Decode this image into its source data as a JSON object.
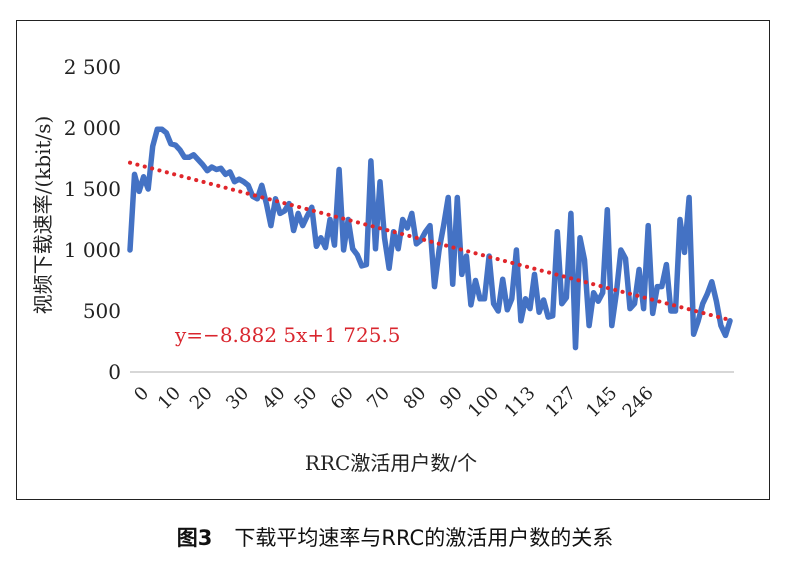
{
  "chart_data": {
    "type": "line",
    "xlabel": "RRC激活用户数/个",
    "ylabel": "视频下载速率/(kbit/s)",
    "ylim": [
      0,
      2500
    ],
    "y_ticks": [
      0,
      500,
      1000,
      1500,
      2000,
      2500
    ],
    "y_tick_labels": [
      "0",
      "500",
      "1 000",
      "1 500",
      "2 000",
      "2 500"
    ],
    "x_tick_labels": [
      "0",
      "10",
      "20",
      "30",
      "40",
      "50",
      "60",
      "70",
      "80",
      "90",
      "100",
      "113",
      "127",
      "145",
      "246"
    ],
    "x_tick_indices": [
      3,
      10,
      17,
      25,
      33,
      40,
      48,
      56,
      64,
      72,
      80,
      88,
      97,
      106,
      114
    ],
    "series": [
      {
        "name": "视频下载速率",
        "color": "#4472c4",
        "values": [
          1000,
          1620,
          1480,
          1600,
          1500,
          1850,
          1990,
          1990,
          1960,
          1870,
          1860,
          1820,
          1760,
          1760,
          1780,
          1740,
          1700,
          1650,
          1680,
          1660,
          1670,
          1620,
          1640,
          1560,
          1580,
          1560,
          1530,
          1440,
          1420,
          1530,
          1380,
          1200,
          1420,
          1300,
          1320,
          1380,
          1160,
          1300,
          1200,
          1280,
          1350,
          1030,
          1100,
          1020,
          1250,
          1040,
          1660,
          1000,
          1250,
          1010,
          960,
          870,
          880,
          1730,
          1010,
          1560,
          1100,
          850,
          1150,
          1010,
          1250,
          1180,
          1300,
          1050,
          1080,
          1150,
          1200,
          700,
          1000,
          1200,
          1430,
          720,
          1430,
          800,
          950,
          550,
          750,
          600,
          600,
          950,
          560,
          500,
          760,
          510,
          600,
          1000,
          420,
          600,
          520,
          800,
          490,
          590,
          450,
          460,
          1150,
          560,
          610,
          1300,
          200,
          1100,
          920,
          380,
          650,
          580,
          650,
          1330,
          380,
          650,
          1000,
          930,
          520,
          560,
          840,
          520,
          1200,
          480,
          700,
          700,
          880,
          500,
          500,
          1250,
          980,
          1430,
          310,
          420,
          560,
          640,
          740,
          580,
          380,
          300,
          420
        ]
      }
    ],
    "trendline": {
      "equation": "y=−8.882 5x+1 725.5",
      "slope": -8.8825,
      "intercept": 1725.5,
      "color": "#e0262b"
    }
  },
  "caption": {
    "number": "图3",
    "text": "下载平均速率与RRC的激活用户数的关系"
  }
}
